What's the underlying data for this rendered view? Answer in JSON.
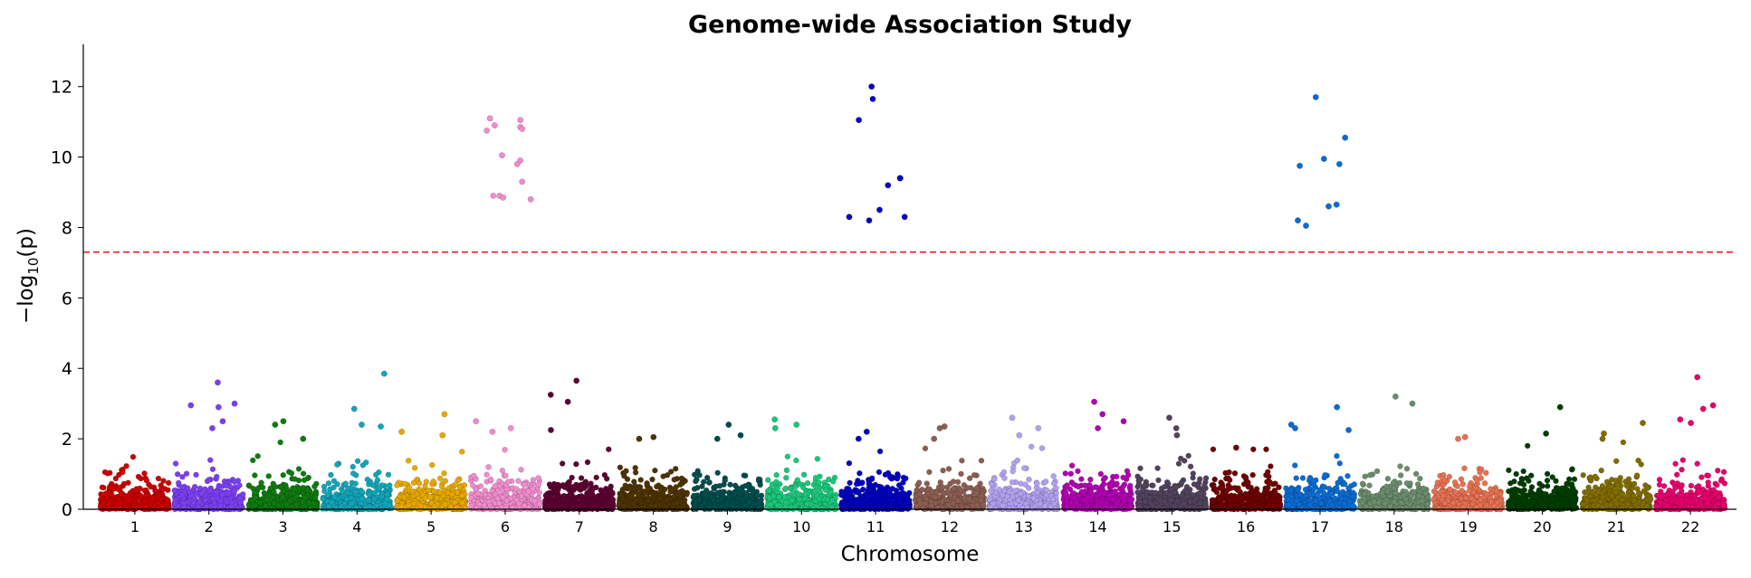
{
  "chart_data": {
    "type": "scatter",
    "title": "Genome-wide Association Study",
    "xlabel": "Chromosome",
    "ylabel": "−log",
    "ylabel_sub": "10",
    "ylabel_tail": "(p)",
    "ylim": [
      0,
      13.2
    ],
    "yticks": [
      "0",
      "2",
      "4",
      "6",
      "8",
      "10",
      "12"
    ],
    "significance_threshold": 7.3,
    "threshold_color": "#e31a1c",
    "chromosomes": [
      {
        "label": "1",
        "color": "#cc0000",
        "max": 2.0,
        "top_hits": []
      },
      {
        "label": "2",
        "color": "#7b3ff2",
        "max": 3.0,
        "top_hits": [
          3.6,
          3.0,
          2.95,
          2.9,
          2.5,
          2.3
        ]
      },
      {
        "label": "3",
        "color": "#0f7a0f",
        "max": 1.9,
        "top_hits": [
          2.5,
          2.4,
          2.0
        ]
      },
      {
        "label": "4",
        "color": "#12a5b8",
        "max": 2.0,
        "top_hits": [
          3.85,
          2.85,
          2.4,
          2.35
        ]
      },
      {
        "label": "5",
        "color": "#e6a800",
        "max": 2.1,
        "top_hits": [
          2.7,
          2.2,
          2.1
        ]
      },
      {
        "label": "6",
        "color": "#f08ccc",
        "max": 2.1,
        "top_hits": [
          11.1,
          11.05,
          10.85,
          10.9,
          10.8,
          10.75,
          10.05,
          9.9,
          9.8,
          9.3,
          8.9,
          8.9,
          8.85,
          8.8,
          2.5,
          2.3,
          2.2
        ]
      },
      {
        "label": "7",
        "color": "#5c0032",
        "max": 2.1,
        "top_hits": [
          3.65,
          3.25,
          3.05,
          2.25
        ]
      },
      {
        "label": "8",
        "color": "#4d3300",
        "max": 2.0,
        "top_hits": [
          2.05,
          2.0
        ]
      },
      {
        "label": "9",
        "color": "#004d4d",
        "max": 1.9,
        "top_hits": [
          2.4,
          2.1,
          2.0
        ]
      },
      {
        "label": "10",
        "color": "#1ac77a",
        "max": 2.2,
        "top_hits": [
          2.55,
          2.4,
          2.3
        ]
      },
      {
        "label": "11",
        "color": "#0000c0",
        "max": 1.9,
        "top_hits": [
          12.0,
          11.65,
          11.05,
          9.4,
          9.4,
          9.2,
          8.5,
          8.3,
          8.3,
          8.2,
          2.2,
          2.0
        ]
      },
      {
        "label": "12",
        "color": "#8c5e52",
        "max": 2.0,
        "top_hits": [
          2.35,
          2.3,
          2.0
        ]
      },
      {
        "label": "13",
        "color": "#b0a0ee",
        "max": 2.0,
        "top_hits": [
          2.6,
          2.3,
          2.1
        ]
      },
      {
        "label": "14",
        "color": "#b000b0",
        "max": 2.1,
        "top_hits": [
          3.05,
          2.7,
          2.5,
          2.3
        ]
      },
      {
        "label": "15",
        "color": "#52425e",
        "max": 1.9,
        "top_hits": [
          2.6,
          2.3,
          2.1
        ]
      },
      {
        "label": "16",
        "color": "#6e0000",
        "max": 1.7,
        "top_hits": [
          1.75
        ]
      },
      {
        "label": "17",
        "color": "#0a6bd1",
        "max": 1.9,
        "top_hits": [
          11.7,
          10.55,
          9.95,
          9.8,
          9.75,
          8.65,
          8.6,
          8.2,
          8.05,
          2.9,
          2.4,
          2.3,
          2.25
        ]
      },
      {
        "label": "18",
        "color": "#6b8c6b",
        "max": 2.1,
        "top_hits": [
          3.2,
          3.0
        ]
      },
      {
        "label": "19",
        "color": "#e67050",
        "max": 2.05,
        "top_hits": [
          2.05,
          2.0
        ]
      },
      {
        "label": "20",
        "color": "#003d00",
        "max": 1.8,
        "top_hits": [
          2.9,
          2.15
        ]
      },
      {
        "label": "21",
        "color": "#806c00",
        "max": 1.9,
        "top_hits": [
          2.45,
          2.15,
          2.0
        ]
      },
      {
        "label": "22",
        "color": "#e6006b",
        "max": 2.0,
        "top_hits": [
          3.75,
          2.95,
          2.85,
          2.55,
          2.45
        ]
      }
    ]
  }
}
